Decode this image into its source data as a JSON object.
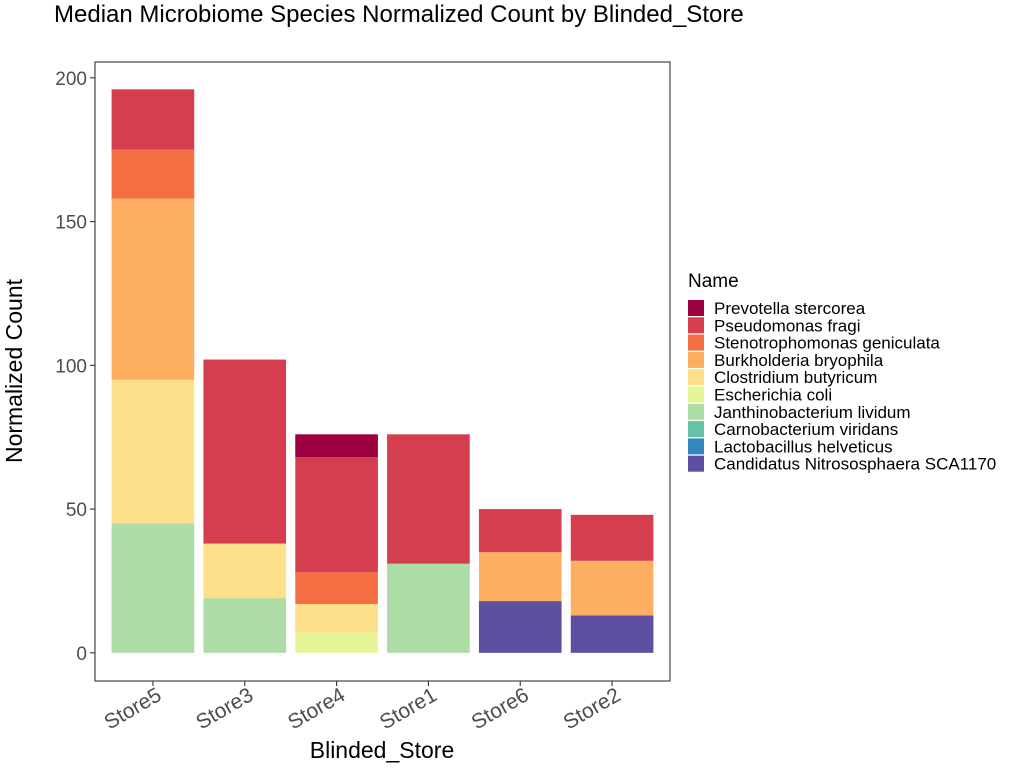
{
  "chart_data": {
    "type": "bar",
    "stacked": true,
    "title": "Median Microbiome Species Normalized Count by Blinded_Store",
    "xlabel": "Blinded_Store",
    "ylabel": "Normalized Count",
    "ylim": [
      -9.8,
      205.5
    ],
    "yticks": [
      0,
      50,
      100,
      150,
      200
    ],
    "grid": false,
    "legend_position": "right",
    "legend_title": "Name",
    "categories": [
      "Store5",
      "Store3",
      "Store4",
      "Store1",
      "Store6",
      "Store2"
    ],
    "series": [
      {
        "name": "Prevotella stercorea",
        "color": "#9e0142",
        "values": [
          0,
          0,
          8,
          0,
          0,
          0
        ]
      },
      {
        "name": "Pseudomonas fragi",
        "color": "#d53e4f",
        "values": [
          21,
          64,
          40,
          45,
          15,
          16
        ]
      },
      {
        "name": "Stenotrophomonas geniculata",
        "color": "#f46d43",
        "values": [
          17,
          0,
          11,
          0,
          0,
          0
        ]
      },
      {
        "name": "Burkholderia bryophila",
        "color": "#fdae61",
        "values": [
          63,
          0,
          0,
          0,
          17,
          19
        ]
      },
      {
        "name": "Clostridium butyricum",
        "color": "#fee08b",
        "values": [
          50,
          19,
          10,
          0,
          0,
          0
        ]
      },
      {
        "name": "Escherichia coli",
        "color": "#e6f598",
        "values": [
          0,
          0,
          7,
          0,
          0,
          0
        ]
      },
      {
        "name": "Janthinobacterium lividum",
        "color": "#abdda4",
        "values": [
          45,
          19,
          0,
          31,
          0,
          0
        ]
      },
      {
        "name": "Carnobacterium viridans",
        "color": "#66c2a5",
        "values": [
          0,
          0,
          0,
          0,
          0,
          0
        ]
      },
      {
        "name": "Lactobacillus helveticus",
        "color": "#3288bd",
        "values": [
          0,
          0,
          0,
          0,
          0,
          0
        ]
      },
      {
        "name": "Candidatus Nitrososphaera SCA1170",
        "color": "#5e4fa2",
        "values": [
          0,
          0,
          0,
          0,
          18,
          13
        ]
      }
    ]
  }
}
